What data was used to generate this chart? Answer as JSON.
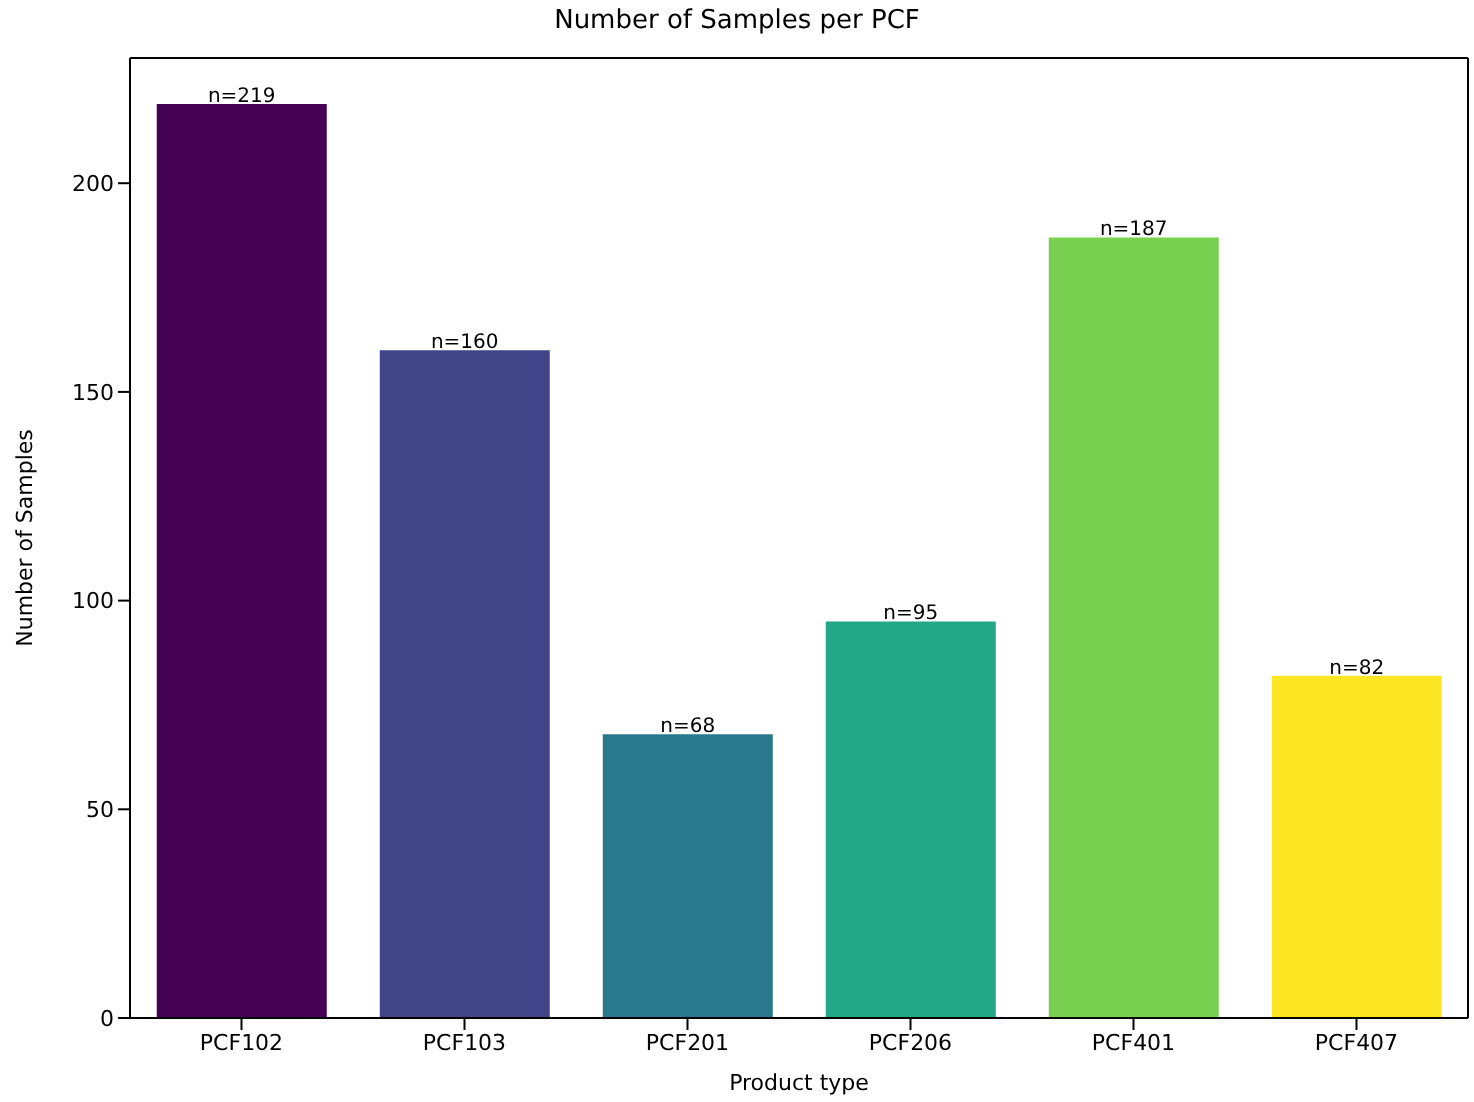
{
  "chart_data": {
    "type": "bar",
    "title": "Number of Samples per PCF",
    "xlabel": "Product type",
    "ylabel": "Number of Samples",
    "categories": [
      "PCF102",
      "PCF103",
      "PCF201",
      "PCF206",
      "PCF401",
      "PCF407"
    ],
    "values": [
      219,
      160,
      68,
      95,
      187,
      82
    ],
    "colors": [
      "#440154",
      "#414487",
      "#2a788e",
      "#22a884",
      "#7ad151",
      "#fde725"
    ],
    "value_labels": [
      "n=219",
      "n=160",
      "n=68",
      "n=95",
      "n=187",
      "n=82"
    ],
    "ylim": [
      0,
      230
    ],
    "yticks": [
      0,
      50,
      100,
      150,
      200
    ],
    "grid": false,
    "legend": false
  }
}
